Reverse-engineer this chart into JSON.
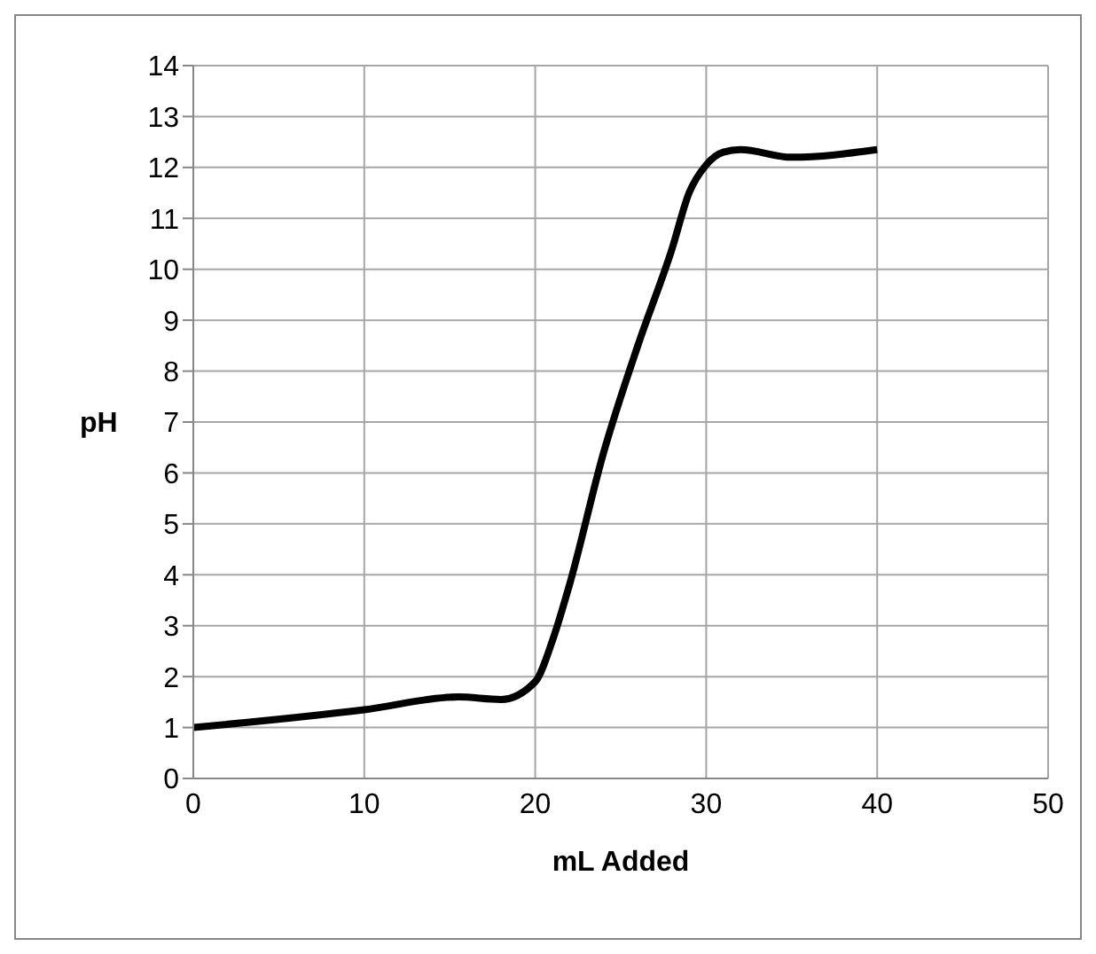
{
  "chart_data": {
    "type": "line",
    "xlabel": "mL Added",
    "ylabel": "pH",
    "x": [
      0,
      10,
      15.5,
      18,
      20,
      21,
      22,
      24,
      26,
      28,
      29,
      30,
      31,
      32,
      35,
      40
    ],
    "series": [
      {
        "color": "#000000",
        "values": [
          1.0,
          1.35,
          1.6,
          1.55,
          1.9,
          2.7,
          3.8,
          6.4,
          8.5,
          10.4,
          11.5,
          12.05,
          12.3,
          12.35,
          12.2,
          12.35
        ]
      }
    ],
    "xlim": [
      0,
      50
    ],
    "xticks": [
      0,
      10,
      20,
      30,
      40,
      50
    ],
    "ylim": [
      0,
      14
    ],
    "yticks": [
      0,
      1,
      2,
      3,
      4,
      5,
      6,
      7,
      8,
      9,
      10,
      11,
      12,
      13,
      14
    ],
    "grid": true,
    "marker": "none",
    "line_style": "solid",
    "legend": false
  }
}
